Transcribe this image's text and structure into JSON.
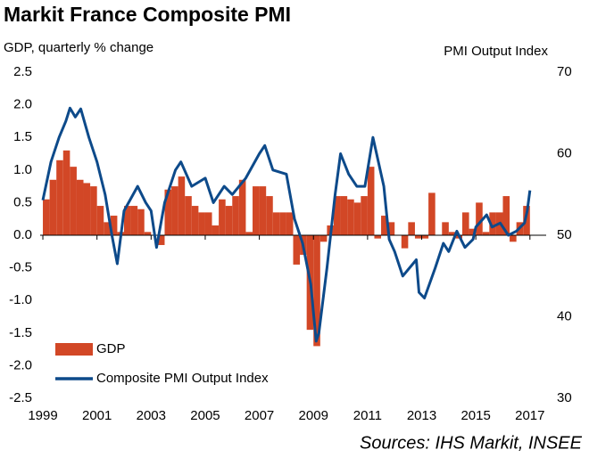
{
  "chart_data": {
    "type": "bar-line",
    "title": "Markit France Composite PMI",
    "ylabel": "GDP, quarterly % change",
    "y2label": "PMI Output Index",
    "source": "Sources: IHS Markit, INSEE",
    "xlim": [
      1998.9,
      2017.6
    ],
    "xticks": [
      1999,
      2001,
      2003,
      2005,
      2007,
      2009,
      2011,
      2013,
      2015,
      2017
    ],
    "ylim": [
      -2.5,
      2.5
    ],
    "yticks": [
      {
        "value": 2.5,
        "label": "2.5"
      },
      {
        "value": 2,
        "label": "2.0"
      },
      1.5,
      {
        "value": 1,
        "label": "1.0"
      },
      0.5,
      {
        "value": 0,
        "label": "0.0"
      },
      -0.5,
      {
        "value": -1,
        "label": "-1.0"
      },
      -1.5,
      {
        "value": -2,
        "label": "-2.0"
      },
      -2.5
    ],
    "y2lim": [
      30,
      70
    ],
    "y2ticks": [
      30,
      40,
      50,
      60,
      70
    ],
    "series": [
      {
        "name": "GDP",
        "type": "bar",
        "color": "#d24726",
        "x": [
          1999,
          1999.25,
          1999.5,
          1999.75,
          2000,
          2000.25,
          2000.5,
          2000.75,
          2001,
          2001.25,
          2001.5,
          2001.75,
          2002,
          2002.25,
          2002.5,
          2002.75,
          2003,
          2003.25,
          2003.5,
          2003.75,
          2004,
          2004.25,
          2004.5,
          2004.75,
          2005,
          2005.25,
          2005.5,
          2005.75,
          2006,
          2006.25,
          2006.5,
          2006.75,
          2007,
          2007.25,
          2007.5,
          2007.75,
          2008,
          2008.25,
          2008.5,
          2008.75,
          2009,
          2009.25,
          2009.5,
          2009.75,
          2010,
          2010.25,
          2010.5,
          2010.75,
          2011,
          2011.25,
          2011.5,
          2011.75,
          2012,
          2012.25,
          2012.5,
          2012.75,
          2013,
          2013.25,
          2013.5,
          2013.75,
          2014,
          2014.25,
          2014.5,
          2014.75,
          2015,
          2015.25,
          2015.5,
          2015.75,
          2016,
          2016.25,
          2016.5,
          2016.75
        ],
        "values": [
          0.55,
          0.85,
          1.15,
          1.3,
          1.05,
          0.85,
          0.8,
          0.75,
          0.45,
          0.2,
          0.3,
          0.05,
          0.45,
          0.45,
          0.4,
          0.05,
          0.0,
          -0.15,
          0.7,
          0.75,
          0.9,
          0.6,
          0.45,
          0.35,
          0.35,
          0.15,
          0.55,
          0.45,
          0.6,
          0.85,
          0.05,
          0.75,
          0.75,
          0.6,
          0.35,
          0.35,
          0.35,
          -0.45,
          -0.3,
          -1.45,
          -1.7,
          -0.1,
          0.15,
          0.6,
          0.6,
          0.55,
          0.5,
          0.6,
          1.05,
          -0.05,
          0.3,
          0.2,
          0.0,
          -0.2,
          0.2,
          -0.05,
          -0.05,
          0.65,
          0.0,
          0.2,
          0.05,
          -0.05,
          0.35,
          0.1,
          0.5,
          0.05,
          0.35,
          0.35,
          0.6,
          -0.1,
          0.2,
          0.45
        ]
      },
      {
        "name": "Composite PMI Output Index",
        "type": "line",
        "axis": "y2",
        "color": "#0d4a8a",
        "x": [
          1999,
          1999.3,
          1999.6,
          1999.85,
          2000,
          2000.2,
          2000.4,
          2000.7,
          2001,
          2001.3,
          2001.55,
          2001.75,
          2002,
          2002.5,
          2002.8,
          2003.0,
          2003.2,
          2003.5,
          2003.9,
          2004.1,
          2004.5,
          2005,
          2005.3,
          2005.7,
          2006,
          2006.5,
          2007,
          2007.2,
          2007.5,
          2008,
          2008.3,
          2008.6,
          2008.9,
          2009.1,
          2009.2,
          2009.5,
          2009.8,
          2010,
          2010.3,
          2010.6,
          2010.9,
          2011.2,
          2011.6,
          2011.8,
          2012,
          2012.3,
          2012.8,
          2012.9,
          2013.1,
          2013.5,
          2013.8,
          2014,
          2014.3,
          2014.6,
          2014.9,
          2015,
          2015.4,
          2015.6,
          2015.9,
          2016.2,
          2016.5,
          2016.8,
          2016.9,
          2017
        ],
        "values": [
          54.3,
          59,
          62,
          64,
          65.6,
          64.5,
          65.5,
          62,
          59,
          55,
          50,
          46.5,
          53,
          56,
          54,
          53,
          48.5,
          54,
          58,
          59,
          56,
          57,
          54,
          56,
          55,
          57,
          60,
          61,
          58,
          57.5,
          52,
          49,
          44,
          37,
          38,
          46,
          55,
          60,
          57.5,
          56,
          56,
          62,
          56,
          49.5,
          48,
          45,
          47,
          43,
          42.3,
          46,
          49,
          48,
          50.5,
          48.5,
          49.5,
          51,
          52.5,
          51,
          51.5,
          50,
          50.5,
          51.5,
          53,
          55.5
        ]
      }
    ]
  }
}
